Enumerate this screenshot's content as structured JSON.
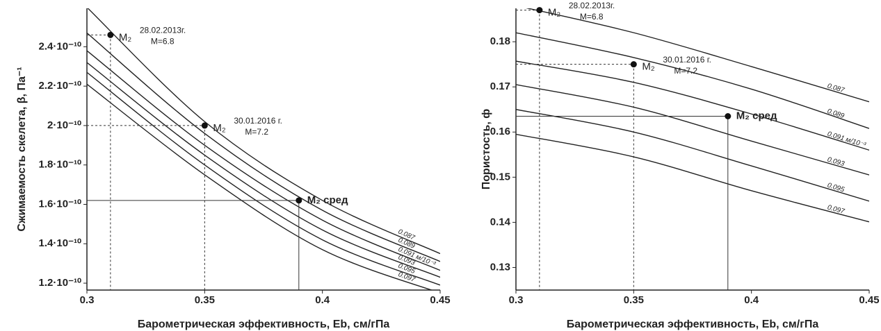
{
  "chart_data": [
    {
      "type": "line",
      "x_label": "Барометрическая эффективность, Eb, см/гПа",
      "y_label": "Сжимаемость скелета, β, Па⁻¹",
      "x": [
        0.3,
        0.35,
        0.4,
        0.45
      ],
      "xlim": [
        0.3,
        0.45
      ],
      "xticks": [
        0.3,
        0.35,
        0.4,
        0.45
      ],
      "ylim": [
        1.165e-10,
        2.595e-10
      ],
      "yticks": [
        {
          "value": 1.2e-10,
          "label": "1.2·10⁻¹⁰"
        },
        {
          "value": 1.4e-10,
          "label": "1.4·10⁻¹⁰"
        },
        {
          "value": 1.6e-10,
          "label": "1.6·10⁻¹⁰"
        },
        {
          "value": 1.8e-10,
          "label": "1.8·10⁻¹⁰"
        },
        {
          "value": 2e-10,
          "label": "2·10⁻¹⁰"
        },
        {
          "value": 2.2e-10,
          "label": "2.2·10⁻¹⁰"
        },
        {
          "value": 2.4e-10,
          "label": "2.4·10⁻¹⁰"
        }
      ],
      "series": [
        {
          "name": "0.087",
          "color": "#222222",
          "values": [
            2.6e-10,
            2.02e-10,
            1.62e-10,
            1.35e-10
          ]
        },
        {
          "name": "0.089",
          "color": "#222222",
          "values": [
            2.47e-10,
            1.96e-10,
            1.57e-10,
            1.31e-10
          ]
        },
        {
          "name": "0.091 м/10⁻³",
          "color": "#222222",
          "values": [
            2.38e-10,
            1.9e-10,
            1.52e-10,
            1.265e-10
          ]
        },
        {
          "name": "0.093",
          "color": "#222222",
          "values": [
            2.32e-10,
            1.85e-10,
            1.47e-10,
            1.23e-10
          ]
        },
        {
          "name": "0.095",
          "color": "#222222",
          "values": [
            2.27e-10,
            1.8e-10,
            1.42e-10,
            1.19e-10
          ]
        },
        {
          "name": "0.097",
          "color": "#222222",
          "values": [
            2.21e-10,
            1.75e-10,
            1.37e-10,
            1.15e-10
          ]
        }
      ],
      "points": [
        {
          "label": "M₂",
          "date": "28.02.2013г.",
          "m": "M=6.8",
          "x": 0.31,
          "y": 2.46e-10
        },
        {
          "label": "M₂",
          "date": "30.01.2016 г.",
          "m": "M=7.2",
          "x": 0.35,
          "y": 2e-10
        },
        {
          "label": "M₂ сред",
          "x": 0.39,
          "y": 1.62e-10
        }
      ]
    },
    {
      "type": "line",
      "x_label": "Барометрическая эффективность, Eb, см/гПа",
      "y_label": "Пористость, ф",
      "x": [
        0.3,
        0.35,
        0.4,
        0.45
      ],
      "xlim": [
        0.3,
        0.45
      ],
      "xticks": [
        0.3,
        0.35,
        0.4,
        0.45
      ],
      "ylim": [
        0.125,
        0.1874
      ],
      "yticks": [
        0.13,
        0.14,
        0.15,
        0.16,
        0.17,
        0.18
      ],
      "series": [
        {
          "name": "0.087",
          "color": "#222222",
          "values": [
            0.188,
            0.182,
            0.1745,
            0.1667
          ]
        },
        {
          "name": "0.089",
          "color": "#222222",
          "values": [
            0.182,
            0.1765,
            0.1695,
            0.1608
          ]
        },
        {
          "name": "0.091 м/10⁻³",
          "color": "#222222",
          "values": [
            0.1757,
            0.171,
            0.164,
            0.156
          ]
        },
        {
          "name": "0.093",
          "color": "#222222",
          "values": [
            0.1705,
            0.1655,
            0.158,
            0.1505
          ]
        },
        {
          "name": "0.095",
          "color": "#222222",
          "values": [
            0.165,
            0.16,
            0.1525,
            0.1447
          ]
        },
        {
          "name": "0.097",
          "color": "#222222",
          "values": [
            0.1595,
            0.1545,
            0.147,
            0.1401
          ]
        }
      ],
      "points": [
        {
          "label": "M₂",
          "date": "28.02.2013г.",
          "m": "M=6.8",
          "x": 0.31,
          "y": 0.187
        },
        {
          "label": "M₂",
          "date": "30.01.2016 г.",
          "m": "M=7.2",
          "x": 0.35,
          "y": 0.175
        },
        {
          "label": "M₂ сред",
          "x": 0.39,
          "y": 0.1635
        }
      ]
    }
  ]
}
